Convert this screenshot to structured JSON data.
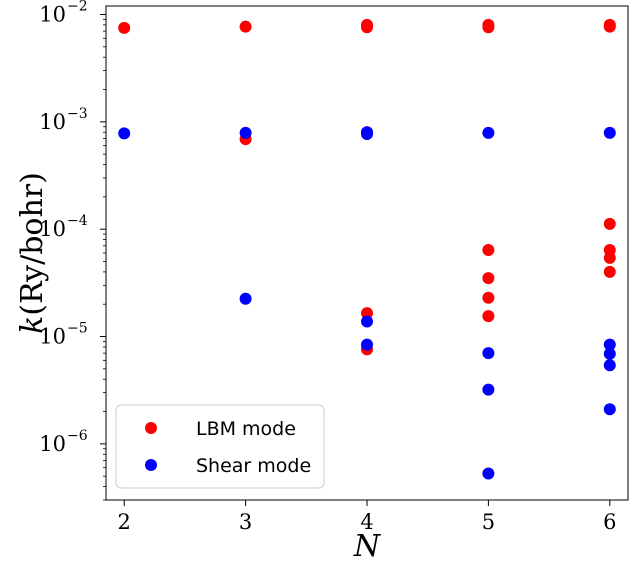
{
  "chart_data": {
    "type": "scatter",
    "xlabel": "N",
    "ylabel": "k(Ry/bohr)",
    "ylabel_italic": "k",
    "ylabel_rest": "(Ry/bohr)",
    "yscale": "log",
    "xlim": [
      1.85,
      6.15
    ],
    "ylim": [
      3e-07,
      0.012
    ],
    "x_ticks": [
      2,
      3,
      4,
      5,
      6
    ],
    "y_ticks": [
      {
        "value": 1e-06,
        "base": "10",
        "exp": "−6"
      },
      {
        "value": 1e-05,
        "base": "10",
        "exp": "−5"
      },
      {
        "value": 0.0001,
        "base": "10",
        "exp": "−4"
      },
      {
        "value": 0.001,
        "base": "10",
        "exp": "−3"
      },
      {
        "value": 0.01,
        "base": "10",
        "exp": "−2"
      }
    ],
    "grid": false,
    "legend_position": "lower-left",
    "series": [
      {
        "name": "LBM mode",
        "color": "#ff0000",
        "points": [
          {
            "x": 2,
            "y": 0.0075
          },
          {
            "x": 3,
            "y": 0.0077
          },
          {
            "x": 3,
            "y": 0.00069
          },
          {
            "x": 4,
            "y": 0.008
          },
          {
            "x": 4,
            "y": 0.0076
          },
          {
            "x": 4,
            "y": 0.0008
          },
          {
            "x": 4,
            "y": 1.65e-05
          },
          {
            "x": 4,
            "y": 7.6e-06
          },
          {
            "x": 5,
            "y": 0.008
          },
          {
            "x": 5,
            "y": 0.0076
          },
          {
            "x": 5,
            "y": 6.4e-05
          },
          {
            "x": 5,
            "y": 3.5e-05
          },
          {
            "x": 5,
            "y": 2.3e-05
          },
          {
            "x": 5,
            "y": 1.55e-05
          },
          {
            "x": 6,
            "y": 0.008
          },
          {
            "x": 6,
            "y": 0.0077
          },
          {
            "x": 6,
            "y": 0.000112
          },
          {
            "x": 6,
            "y": 6.4e-05
          },
          {
            "x": 6,
            "y": 5.4e-05
          },
          {
            "x": 6,
            "y": 4e-05
          }
        ]
      },
      {
        "name": "Shear mode",
        "color": "#0000ff",
        "points": [
          {
            "x": 2,
            "y": 0.00078
          },
          {
            "x": 3,
            "y": 0.00079
          },
          {
            "x": 3,
            "y": 2.25e-05
          },
          {
            "x": 4,
            "y": 0.0008
          },
          {
            "x": 4,
            "y": 0.00077
          },
          {
            "x": 4,
            "y": 1.38e-05
          },
          {
            "x": 4,
            "y": 8.4e-06
          },
          {
            "x": 5,
            "y": 0.00079
          },
          {
            "x": 5,
            "y": 7e-06
          },
          {
            "x": 5,
            "y": 3.2e-06
          },
          {
            "x": 5,
            "y": 5.3e-07
          },
          {
            "x": 6,
            "y": 0.00079
          },
          {
            "x": 6,
            "y": 8.4e-06
          },
          {
            "x": 6,
            "y": 6.9e-06
          },
          {
            "x": 6,
            "y": 5.4e-06
          },
          {
            "x": 6,
            "y": 2.1e-06
          }
        ]
      }
    ]
  }
}
